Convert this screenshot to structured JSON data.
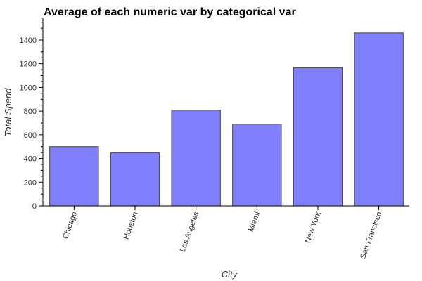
{
  "chart_data": {
    "type": "bar",
    "title": "Average of each numeric var by categorical var",
    "xlabel": "City",
    "ylabel": "Total Spend",
    "categories": [
      "Chicago",
      "Houston",
      "Los Angeles",
      "Miami",
      "New York",
      "San Francisco"
    ],
    "values": [
      500,
      447,
      808,
      690,
      1165,
      1460
    ],
    "ylim": [
      0,
      1560
    ],
    "yticks": [
      "0",
      "200",
      "400",
      "600",
      "800",
      "1000",
      "1200",
      "1400"
    ],
    "grid": false,
    "legend": "none",
    "colors": {
      "bar_fill": "#8080ff",
      "bar_stroke": "#333333"
    }
  }
}
